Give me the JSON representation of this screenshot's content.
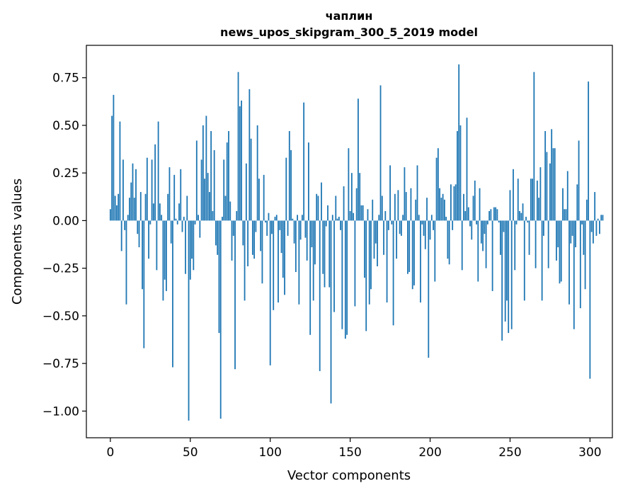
{
  "chart_data": {
    "type": "bar",
    "title_line1": "чаплин",
    "title_line2": "news_upos_skipgram_300_5_2019 model",
    "xlabel": "Vector components",
    "ylabel": "Components values",
    "xlim": [
      -15,
      314
    ],
    "ylim": [
      -1.14,
      0.92
    ],
    "xticks": [
      0,
      50,
      100,
      150,
      200,
      250,
      300
    ],
    "xtick_labels": [
      "0",
      "50",
      "100",
      "150",
      "200",
      "250",
      "300"
    ],
    "yticks": [
      0.75,
      0.5,
      0.25,
      0.0,
      -0.25,
      -0.5,
      -0.75,
      -1.0
    ],
    "ytick_labels": [
      "0.75",
      "0.50",
      "0.25",
      "0.00",
      "−0.25",
      "−0.50",
      "−0.75",
      "−1.00"
    ],
    "bar_color": "#1f77b4",
    "values": [
      0.06,
      0.55,
      0.66,
      0.13,
      0.08,
      0.14,
      0.52,
      -0.16,
      0.32,
      -0.05,
      -0.44,
      0.03,
      0.12,
      0.2,
      0.3,
      0.12,
      0.27,
      -0.07,
      -0.14,
      0.15,
      -0.36,
      -0.67,
      0.14,
      0.33,
      -0.2,
      -0.02,
      0.32,
      0.09,
      0.4,
      -0.26,
      0.52,
      0.09,
      0.03,
      -0.42,
      -0.31,
      -0.37,
      0.14,
      0.28,
      -0.12,
      -0.77,
      0.24,
      0.01,
      -0.02,
      0.09,
      0.27,
      -0.06,
      0.02,
      -0.28,
      0.13,
      -1.05,
      -0.31,
      -0.2,
      -0.26,
      -0.02,
      0.42,
      0.03,
      -0.09,
      0.32,
      0.5,
      0.22,
      0.55,
      0.25,
      0.15,
      0.47,
      0.05,
      0.37,
      -0.13,
      -0.18,
      -0.59,
      -1.04,
      0.02,
      0.32,
      0.13,
      0.41,
      0.47,
      0.1,
      -0.21,
      -0.08,
      -0.78,
      0.05,
      0.78,
      0.6,
      0.63,
      -0.13,
      -0.42,
      0.3,
      -0.24,
      0.69,
      0.43,
      -0.18,
      -0.2,
      -0.06,
      0.5,
      0.22,
      -0.16,
      -0.33,
      0.24,
      -0.01,
      -0.08,
      0.04,
      -0.76,
      -0.07,
      -0.47,
      0.02,
      0.03,
      -0.43,
      -0.05,
      -0.17,
      -0.3,
      -0.39,
      0.33,
      -0.08,
      0.47,
      0.37,
      0.01,
      -0.12,
      -0.27,
      0.03,
      -0.44,
      -0.1,
      0.03,
      0.62,
      -0.09,
      -0.21,
      0.41,
      -0.6,
      -0.14,
      -0.42,
      -0.23,
      0.14,
      0.13,
      -0.79,
      0.2,
      -0.28,
      -0.35,
      -0.03,
      0.08,
      -0.35,
      -0.96,
      0.03,
      -0.48,
      0.13,
      0.01,
      0.02,
      -0.05,
      -0.57,
      0.18,
      -0.62,
      -0.6,
      0.38,
      0.05,
      0.25,
      0.04,
      -0.45,
      0.17,
      0.64,
      0.25,
      0.08,
      0.08,
      -0.3,
      -0.58,
      0.06,
      -0.44,
      -0.36,
      0.11,
      -0.2,
      -0.12,
      -0.24,
      0.03,
      0.71,
      0.13,
      -0.18,
      0.05,
      -0.43,
      -0.05,
      0.29,
      -0.02,
      -0.55,
      0.14,
      -0.2,
      0.16,
      -0.07,
      -0.08,
      0.03,
      0.28,
      0.15,
      -0.28,
      -0.27,
      0.17,
      -0.36,
      -0.34,
      0.11,
      0.29,
      0.03,
      -0.43,
      -0.02,
      -0.08,
      -0.15,
      0.12,
      -0.72,
      -0.1,
      0.03,
      -0.05,
      -0.32,
      0.33,
      0.38,
      0.17,
      0.12,
      0.14,
      0.11,
      0.02,
      -0.2,
      -0.23,
      0.19,
      -0.05,
      0.18,
      0.19,
      0.47,
      0.82,
      0.5,
      -0.26,
      0.14,
      0.05,
      0.54,
      0.07,
      -0.03,
      -0.1,
      0.13,
      0.21,
      -0.02,
      -0.32,
      0.17,
      -0.12,
      -0.16,
      -0.07,
      -0.25,
      -0.02,
      0.05,
      0.06,
      -0.37,
      0.07,
      0.07,
      0.06,
      -0.01,
      -0.18,
      -0.63,
      -0.06,
      -0.53,
      -0.42,
      -0.59,
      0.16,
      -0.57,
      0.27,
      -0.26,
      -0.02,
      0.22,
      0.05,
      0.04,
      0.09,
      -0.42,
      0.02,
      -0.01,
      -0.18,
      0.22,
      0.22,
      0.78,
      -0.25,
      0.21,
      0.12,
      0.28,
      -0.42,
      -0.08,
      0.47,
      0.36,
      -0.25,
      0.3,
      0.48,
      0.38,
      0.38,
      -0.21,
      -0.14,
      -0.33,
      -0.32,
      0.17,
      0.06,
      0.06,
      0.26,
      -0.44,
      -0.12,
      -0.08,
      -0.57,
      -0.14,
      0.19,
      0.42,
      -0.46,
      -0.02,
      -0.18,
      -0.36,
      0.11,
      0.73,
      -0.83,
      -0.06,
      -0.12,
      0.15,
      -0.08,
      0.01,
      -0.07,
      0.03,
      0.03
    ]
  }
}
